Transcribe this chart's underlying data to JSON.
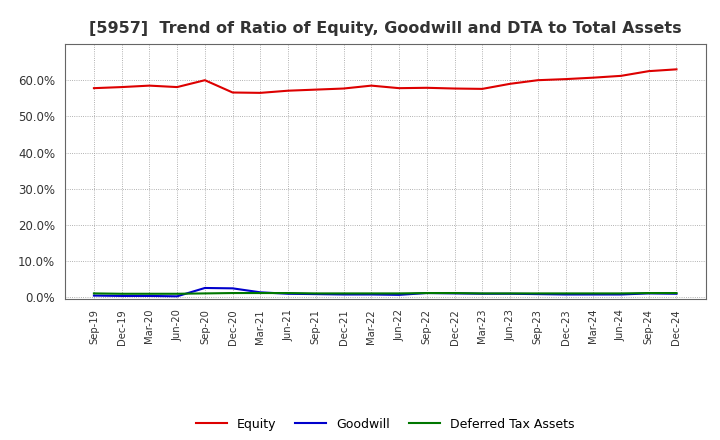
{
  "title": "[5957]  Trend of Ratio of Equity, Goodwill and DTA to Total Assets",
  "title_fontsize": 11.5,
  "background_color": "#ffffff",
  "plot_bg_color": "#ffffff",
  "grid_color": "#999999",
  "x_labels": [
    "Sep-19",
    "Dec-19",
    "Mar-20",
    "Jun-20",
    "Sep-20",
    "Dec-20",
    "Mar-21",
    "Jun-21",
    "Sep-21",
    "Dec-21",
    "Mar-22",
    "Jun-22",
    "Sep-22",
    "Dec-22",
    "Mar-23",
    "Jun-23",
    "Sep-23",
    "Dec-23",
    "Mar-24",
    "Jun-24",
    "Sep-24",
    "Dec-24"
  ],
  "equity": [
    0.578,
    0.581,
    0.585,
    0.581,
    0.6,
    0.566,
    0.565,
    0.571,
    0.574,
    0.577,
    0.585,
    0.578,
    0.579,
    0.577,
    0.576,
    0.59,
    0.6,
    0.603,
    0.607,
    0.612,
    0.625,
    0.63
  ],
  "goodwill": [
    0.005,
    0.004,
    0.004,
    0.003,
    0.026,
    0.025,
    0.014,
    0.01,
    0.009,
    0.008,
    0.008,
    0.007,
    0.012,
    0.011,
    0.01,
    0.01,
    0.009,
    0.008,
    0.008,
    0.008,
    0.011,
    0.01
  ],
  "dta": [
    0.011,
    0.01,
    0.01,
    0.01,
    0.011,
    0.012,
    0.012,
    0.012,
    0.011,
    0.011,
    0.011,
    0.011,
    0.012,
    0.012,
    0.011,
    0.011,
    0.011,
    0.011,
    0.011,
    0.011,
    0.012,
    0.012
  ],
  "equity_color": "#dd0000",
  "goodwill_color": "#0000cc",
  "dta_color": "#007700",
  "ylim": [
    -0.005,
    0.7
  ],
  "yticks": [
    0.0,
    0.1,
    0.2,
    0.3,
    0.4,
    0.5,
    0.6
  ],
  "legend_labels": [
    "Equity",
    "Goodwill",
    "Deferred Tax Assets"
  ],
  "line_width": 1.5
}
